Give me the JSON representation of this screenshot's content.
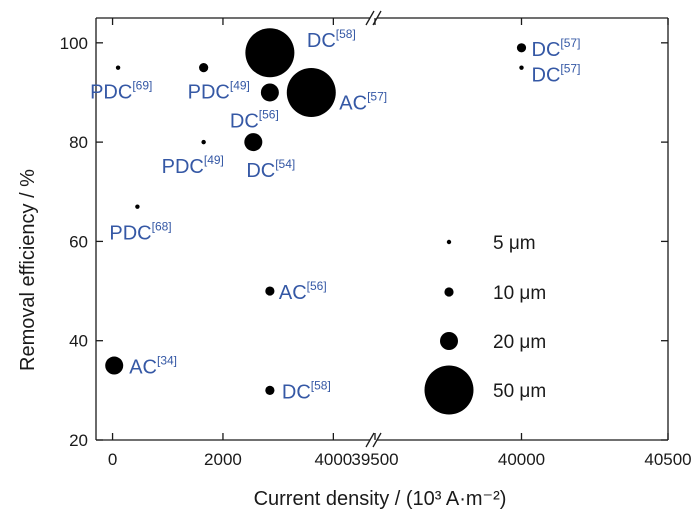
{
  "chart_data": {
    "type": "scatter",
    "xlabel": "Current density / (10³ A·m⁻²)",
    "ylabel": "Removal efficiency / %",
    "ylim": [
      20,
      105
    ],
    "y_ticks": [
      20,
      40,
      60,
      80,
      100
    ],
    "x_axis_break": true,
    "x_segments": [
      {
        "range": [
          -300,
          4700
        ],
        "ticks": [
          0,
          2000,
          4000
        ],
        "tick_labels": [
          "0",
          "2000",
          "4000"
        ]
      },
      {
        "range": [
          39500,
          40500
        ],
        "ticks": [
          39500,
          40000,
          40500
        ],
        "tick_labels": [
          "39500",
          "40000",
          "40500"
        ]
      }
    ],
    "points": [
      {
        "x": 100,
        "y": 95,
        "size_um": 5,
        "mode": "PDC",
        "ref": "[69]"
      },
      {
        "x": 1650,
        "y": 95,
        "size_um": 10,
        "mode": "PDC",
        "ref": "[49]"
      },
      {
        "x": 1650,
        "y": 80,
        "size_um": 5,
        "mode": "PDC",
        "ref": "[49]"
      },
      {
        "x": 450,
        "y": 67,
        "size_um": 5,
        "mode": "PDC",
        "ref": "[68]"
      },
      {
        "x": 2850,
        "y": 98,
        "size_um": 50,
        "mode": "DC",
        "ref": "[58]"
      },
      {
        "x": 2850,
        "y": 90,
        "size_um": 20,
        "mode": "DC",
        "ref": "[56]"
      },
      {
        "x": 3600,
        "y": 90,
        "size_um": 50,
        "mode": "AC",
        "ref": "[57]"
      },
      {
        "x": 2550,
        "y": 80,
        "size_um": 20,
        "mode": "DC",
        "ref": "[54]"
      },
      {
        "x": 2850,
        "y": 50,
        "size_um": 10,
        "mode": "AC",
        "ref": "[56]"
      },
      {
        "x": 2850,
        "y": 30,
        "size_um": 10,
        "mode": "DC",
        "ref": "[58]"
      },
      {
        "x": 30,
        "y": 35,
        "size_um": 20,
        "mode": "AC",
        "ref": "[34]"
      },
      {
        "x": 40000,
        "y": 99,
        "size_um": 10,
        "mode": "DC",
        "ref": "[57]"
      },
      {
        "x": 40000,
        "y": 95,
        "size_um": 5,
        "mode": "DC",
        "ref": "[57]"
      }
    ],
    "legend": {
      "placement": "bottom-right",
      "items": [
        {
          "size_um": 5,
          "label": "5 μm"
        },
        {
          "size_um": 10,
          "label": "10 μm"
        },
        {
          "size_um": 20,
          "label": "20 μm"
        },
        {
          "size_um": 50,
          "label": "50 μm"
        }
      ]
    },
    "grid": false,
    "colors": {
      "marker": "#000000",
      "label": "#3558a5",
      "axis": "#1a1a1a"
    }
  }
}
